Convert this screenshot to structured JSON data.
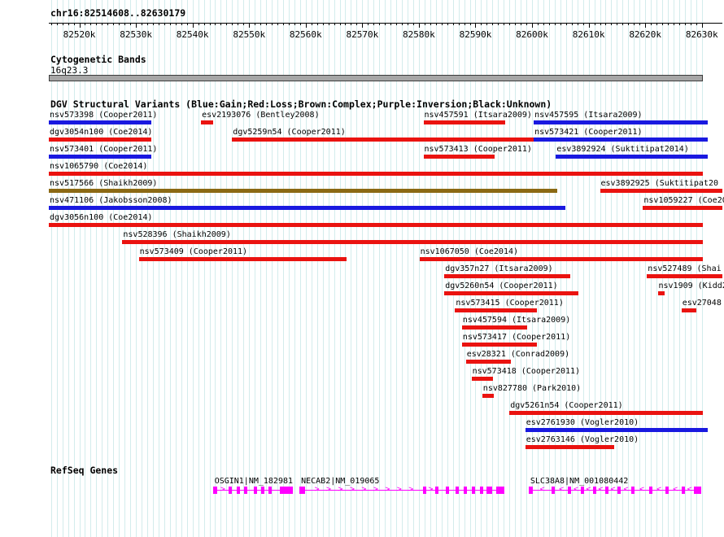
{
  "header": {
    "position_label": "chr16:82514608..82630179"
  },
  "chart_data": {
    "type": "bar",
    "subtype": "genome-browser-interval-tracks",
    "title": "DGV Structural Variants (Blue:Gain;Red:Loss;Brown:Complex;Purple:Inversion;Black:Unknown)",
    "region": {
      "chrom": "chr16",
      "start": 82514608,
      "end": 82630179
    },
    "grid_interval_bp": 1000,
    "x_axis": {
      "range": [
        82514608,
        82630179
      ],
      "ticks": [
        {
          "pos": 82520000,
          "label": "82520k"
        },
        {
          "pos": 82530000,
          "label": "82530k"
        },
        {
          "pos": 82540000,
          "label": "82540k"
        },
        {
          "pos": 82550000,
          "label": "82550k"
        },
        {
          "pos": 82560000,
          "label": "82560k"
        },
        {
          "pos": 82570000,
          "label": "82570k"
        },
        {
          "pos": 82580000,
          "label": "82580k"
        },
        {
          "pos": 82590000,
          "label": "82590k"
        },
        {
          "pos": 82600000,
          "label": "82600k"
        },
        {
          "pos": 82610000,
          "label": "82610k"
        },
        {
          "pos": 82620000,
          "label": "82620k"
        },
        {
          "pos": 82630000,
          "label": "82630k"
        }
      ]
    },
    "cytoband_track": {
      "heading": "Cytogenetic Bands",
      "band": {
        "name": "16q23.3",
        "start": 82514608,
        "end": 82630179,
        "color": "#a6a6a6",
        "border_color": "#3c3c3c"
      }
    },
    "dgv_track": {
      "heading": "DGV Structural Variants (Blue:Gain;Red:Loss;Brown:Complex;Purple:Inversion;Black:Unknown)",
      "type_colors": {
        "gain": "#1919e0",
        "loss": "#ea1310",
        "complex": "#8b6914",
        "inversion": "#800080",
        "unknown": "#000000"
      },
      "variants": [
        {
          "row": 0,
          "label": "nsv573398 (Cooper2011)",
          "type": "gain",
          "start": 82514608,
          "end": 82532700
        },
        {
          "row": 0,
          "label": "esv2193076 (Bentley2008)",
          "type": "loss",
          "start": 82541500,
          "end": 82543700
        },
        {
          "row": 0,
          "label": "nsv457591 (Itsara2009)",
          "type": "loss",
          "start": 82580800,
          "end": 82595200
        },
        {
          "row": 0,
          "label": "nsv457595 (Itsara2009)",
          "type": "gain",
          "start": 82600300,
          "end": 82631000
        },
        {
          "row": 1,
          "label": "dgv3054n100 (Coe2014)",
          "type": "loss",
          "start": 82514608,
          "end": 82532700
        },
        {
          "row": 1,
          "label": "dgv5259n54 (Cooper2011)",
          "type": "loss",
          "start": 82547000,
          "end": 82601700
        },
        {
          "row": 1,
          "label": "nsv573421 (Cooper2011)",
          "type": "gain",
          "start": 82600300,
          "end": 82631000
        },
        {
          "row": 2,
          "label": "nsv573401 (Cooper2011)",
          "type": "gain",
          "start": 82514608,
          "end": 82532700
        },
        {
          "row": 2,
          "label": "nsv573413 (Cooper2011)",
          "type": "loss",
          "start": 82580800,
          "end": 82593400
        },
        {
          "row": 2,
          "label": "esv3892924 (Suktitipat2014)",
          "type": "gain",
          "start": 82604200,
          "end": 82631000
        },
        {
          "row": 3,
          "label": "nsv1065790 (Coe2014)",
          "type": "loss",
          "start": 82514608,
          "end": 82630179
        },
        {
          "row": 4,
          "label": "nsv517566 (Shaikh2009)",
          "type": "complex",
          "start": 82514608,
          "end": 82604500
        },
        {
          "row": 4,
          "label": "esv3892925 (Suktitipat20",
          "type": "loss",
          "start": 82612000,
          "end": 82646000
        },
        {
          "row": 5,
          "label": "nsv471106 (Jakobsson2008)",
          "type": "gain",
          "start": 82514608,
          "end": 82605900
        },
        {
          "row": 5,
          "label": "nsv1059227 (Coe20",
          "type": "loss",
          "start": 82619600,
          "end": 82646000
        },
        {
          "row": 6,
          "label": "dgv3056n100 (Coe2014)",
          "type": "loss",
          "start": 82514608,
          "end": 82630179
        },
        {
          "row": 7,
          "label": "nsv528396 (Shaikh2009)",
          "type": "loss",
          "start": 82527600,
          "end": 82630179
        },
        {
          "row": 8,
          "label": "nsv573409 (Cooper2011)",
          "type": "loss",
          "start": 82530500,
          "end": 82567200
        },
        {
          "row": 8,
          "label": "nsv1067050 (Coe2014)",
          "type": "loss",
          "start": 82580100,
          "end": 82630179
        },
        {
          "row": 9,
          "label": "dgv357n27 (Itsara2009)",
          "type": "loss",
          "start": 82584500,
          "end": 82606800
        },
        {
          "row": 9,
          "label": "nsv527489 (Shai",
          "type": "loss",
          "start": 82620300,
          "end": 82646000
        },
        {
          "row": 10,
          "label": "dgv5260n54 (Cooper2011)",
          "type": "loss",
          "start": 82584500,
          "end": 82608200
        },
        {
          "row": 10,
          "label": "nsv1909 (Kidd2",
          "type": "loss",
          "start": 82622200,
          "end": 82623400
        },
        {
          "row": 11,
          "label": "nsv573415 (Cooper2011)",
          "type": "loss",
          "start": 82586400,
          "end": 82600900
        },
        {
          "row": 11,
          "label": "esv27048",
          "type": "loss",
          "start": 82626400,
          "end": 82629100
        },
        {
          "row": 12,
          "label": "nsv457594 (Itsara2009)",
          "type": "loss",
          "start": 82587600,
          "end": 82599100
        },
        {
          "row": 13,
          "label": "nsv573417 (Cooper2011)",
          "type": "loss",
          "start": 82587600,
          "end": 82600900
        },
        {
          "row": 14,
          "label": "esv28321 (Conrad2009)",
          "type": "loss",
          "start": 82588300,
          "end": 82596300
        },
        {
          "row": 15,
          "label": "nsv573418 (Cooper2011)",
          "type": "loss",
          "start": 82589300,
          "end": 82593100
        },
        {
          "row": 16,
          "label": "nsv827780 (Park2010)",
          "type": "loss",
          "start": 82591200,
          "end": 82593200
        },
        {
          "row": 17,
          "label": "dgv5261n54 (Cooper2011)",
          "type": "loss",
          "start": 82596000,
          "end": 82630179
        },
        {
          "row": 18,
          "label": "esv2761930 (Vogler2010)",
          "type": "gain",
          "start": 82598800,
          "end": 82631000
        },
        {
          "row": 19,
          "label": "esv2763146 (Vogler2010)",
          "type": "loss",
          "start": 82598800,
          "end": 82614500
        }
      ]
    },
    "refseq_track": {
      "heading": "RefSeq Genes",
      "color": "#ff00ff",
      "genes": [
        {
          "label": "OSGIN1|NM_182981",
          "strand": "+",
          "start": 82543600,
          "end": 82557700,
          "exons": [
            [
              82543600,
              82544400
            ],
            [
              82546300,
              82546950
            ],
            [
              82547800,
              82548400
            ],
            [
              82549100,
              82549700
            ],
            [
              82550800,
              82551400
            ],
            [
              82552100,
              82552700
            ],
            [
              82553400,
              82554000
            ],
            [
              82555400,
              82557700
            ]
          ]
        },
        {
          "label": "NECAB2|NM_019065",
          "strand": "+",
          "start": 82558900,
          "end": 82595100,
          "exons": [
            [
              82558900,
              82559900
            ],
            [
              82580700,
              82581300
            ],
            [
              82582900,
              82583500
            ],
            [
              82584750,
              82585350
            ],
            [
              82586500,
              82587050
            ],
            [
              82587900,
              82588500
            ],
            [
              82589350,
              82589950
            ],
            [
              82590800,
              82591400
            ],
            [
              82591950,
              82592950
            ],
            [
              82593700,
              82595100
            ]
          ]
        },
        {
          "label": "SLC38A8|NM_001080442",
          "strand": "-",
          "start": 82599400,
          "end": 82629900,
          "exons": [
            [
              82599400,
              82600150
            ],
            [
              82603450,
              82604050
            ],
            [
              82606300,
              82606900
            ],
            [
              82608600,
              82609200
            ],
            [
              82610750,
              82611350
            ],
            [
              82612900,
              82613500
            ],
            [
              82615100,
              82615700
            ],
            [
              82617500,
              82618100
            ],
            [
              82620700,
              82621300
            ],
            [
              82623550,
              82624150
            ],
            [
              82626450,
              82627050
            ],
            [
              82628600,
              82629900
            ]
          ]
        }
      ]
    }
  }
}
